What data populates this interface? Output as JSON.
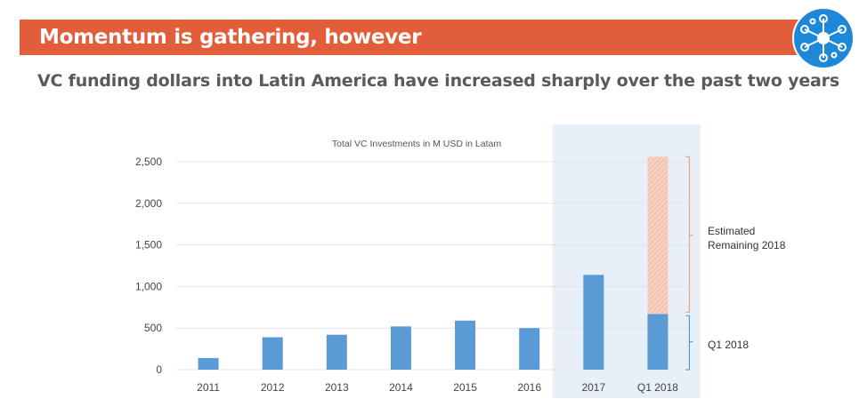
{
  "slide": {
    "title": "Momentum is gathering, however",
    "subtitle": "VC funding dollars into Latin America have increased sharply over the past two years"
  },
  "logo": {
    "icon": "network-hub-icon",
    "color": "#1e88d8"
  },
  "colors": {
    "banner": "#e25d3a",
    "bar": "#5b9bd5",
    "estimated": "#f4c6b1",
    "bracket": "#f4a081",
    "highlight": "#ddeaf6"
  },
  "chart_data": {
    "type": "bar",
    "title": "Total VC Investments in M USD in Latam",
    "categories": [
      "2011",
      "2012",
      "2013",
      "2014",
      "2015",
      "2016",
      "2017",
      "Q1 2018"
    ],
    "values": [
      140,
      390,
      420,
      520,
      590,
      500,
      1140,
      670
    ],
    "stacked_estimate": {
      "category": "Q1 2018",
      "value": 1890,
      "total": 2560
    },
    "y_ticks": [
      0,
      500,
      1000,
      1500,
      2000,
      2500
    ],
    "y_tick_labels": [
      "0",
      "500",
      "1,000",
      "1,500",
      "2,000",
      "2,500"
    ],
    "ylim": [
      0,
      2500
    ],
    "grid": true,
    "highlighted_categories": [
      "2017",
      "Q1 2018"
    ],
    "annotations": {
      "estimated_line1": "Estimated",
      "estimated_line2": "Remaining 2018",
      "q1": "Q1 2018"
    }
  }
}
